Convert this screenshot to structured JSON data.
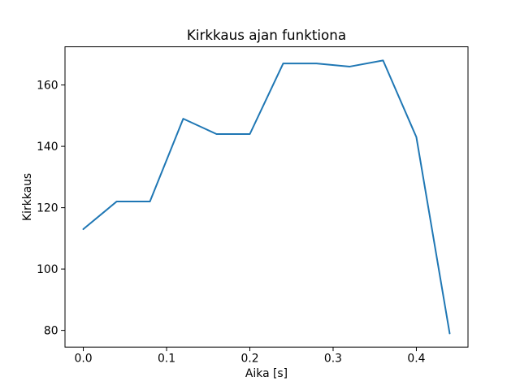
{
  "chart_data": {
    "type": "line",
    "title": "Kirkkaus ajan funktiona",
    "xlabel": "Aika [s]",
    "ylabel": "Kirkkaus",
    "x": [
      0.0,
      0.04,
      0.08,
      0.12,
      0.16,
      0.2,
      0.24,
      0.28,
      0.32,
      0.36,
      0.4,
      0.44
    ],
    "values": [
      113,
      122,
      122,
      149,
      144,
      144,
      167,
      167,
      166,
      168,
      143,
      79
    ],
    "xticks": [
      0.0,
      0.1,
      0.2,
      0.3,
      0.4
    ],
    "xtick_labels": [
      "0.0",
      "0.1",
      "0.2",
      "0.3",
      "0.4"
    ],
    "yticks": [
      80,
      100,
      120,
      140,
      160
    ],
    "ytick_labels": [
      "80",
      "100",
      "120",
      "140",
      "160"
    ],
    "xlim": [
      -0.022,
      0.462
    ],
    "ylim": [
      74.55,
      172.45
    ],
    "grid": false,
    "legend": "none",
    "line_color": "#1f77b4",
    "axis_color": "#000000",
    "background_color": "#ffffff"
  }
}
